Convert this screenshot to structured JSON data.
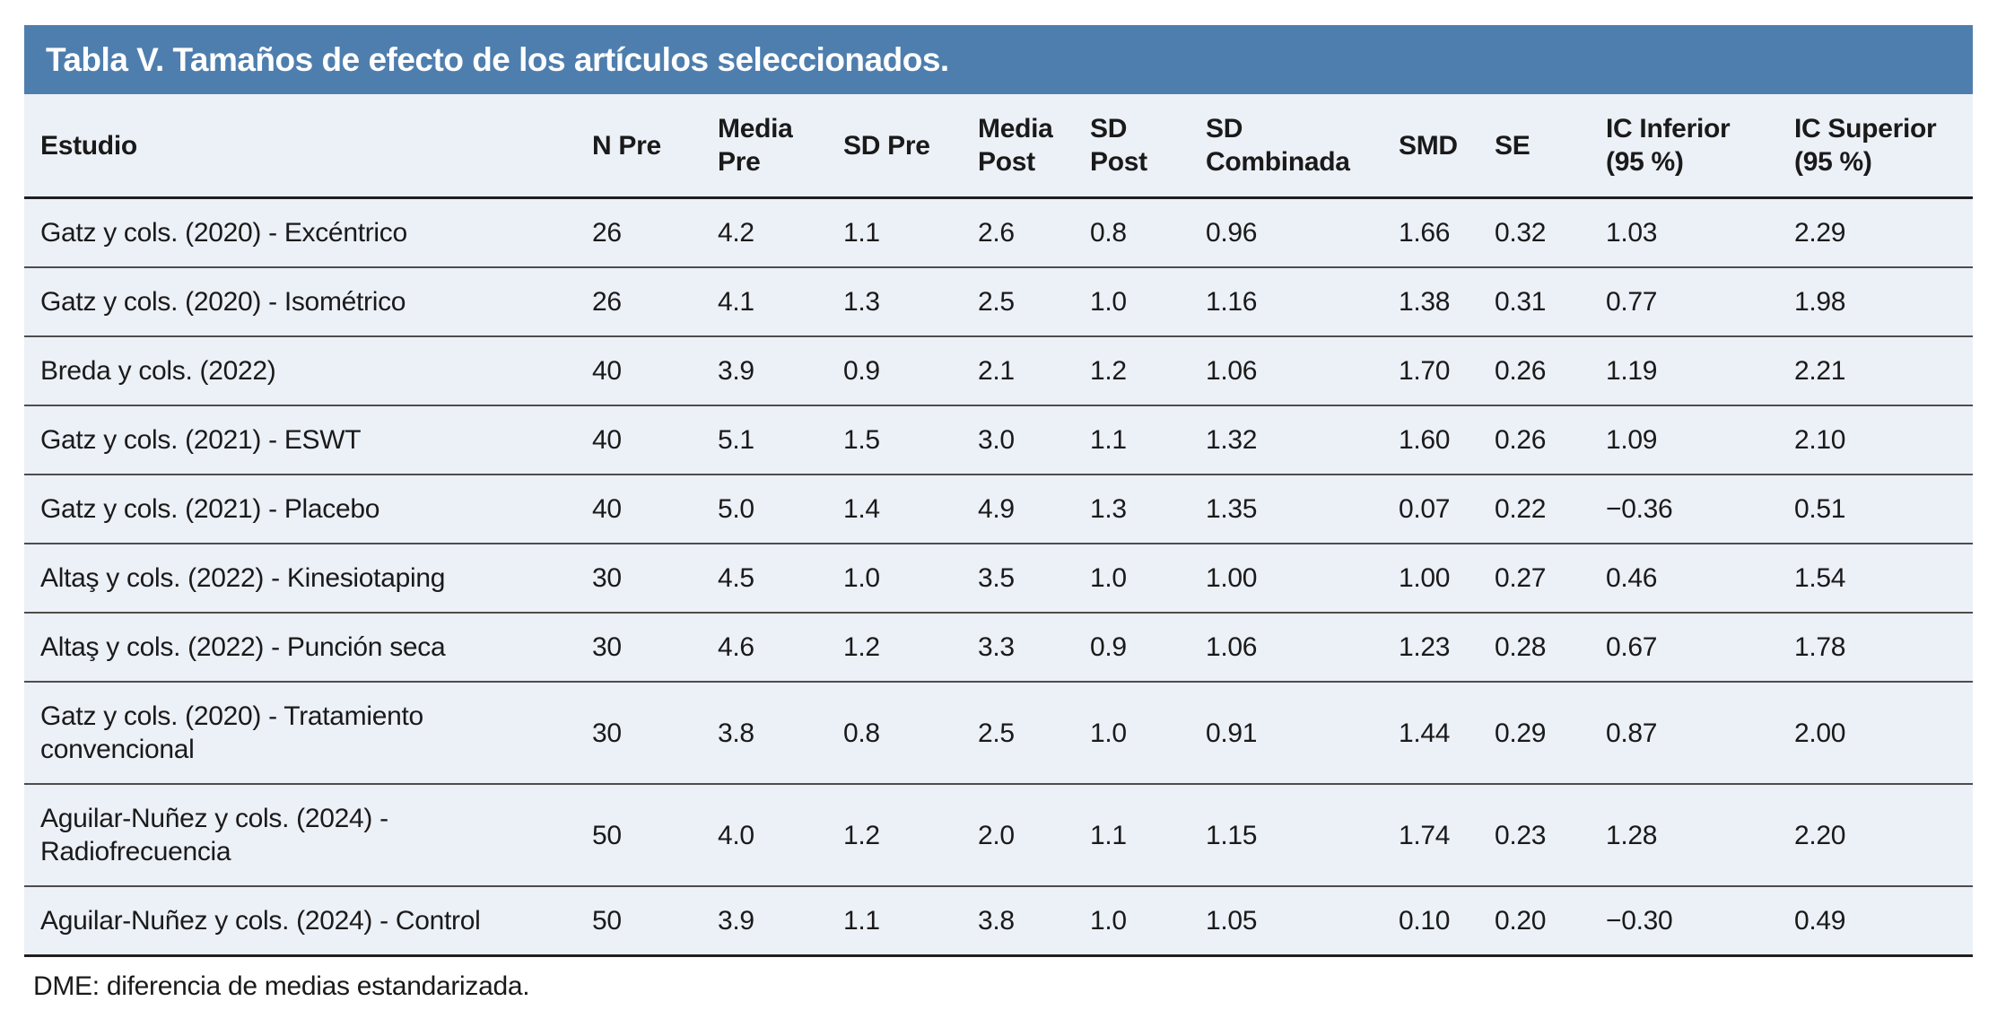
{
  "title": "Tabla V. Tamaños de efecto de los artículos seleccionados.",
  "table": {
    "columns": [
      {
        "key": "estudio",
        "label": "Estudio"
      },
      {
        "key": "n_pre",
        "label": "N Pre"
      },
      {
        "key": "media_pre",
        "label": "Media Pre"
      },
      {
        "key": "sd_pre",
        "label": "SD Pre"
      },
      {
        "key": "media_post",
        "label": "Media Post"
      },
      {
        "key": "sd_post",
        "label": "SD Post"
      },
      {
        "key": "sd_combinada",
        "label": "SD Combinada"
      },
      {
        "key": "smd",
        "label": "SMD"
      },
      {
        "key": "se",
        "label": "SE"
      },
      {
        "key": "ic_inferior",
        "label": "IC Inferior (95 %)"
      },
      {
        "key": "ic_superior",
        "label": "IC Superior (95 %)"
      }
    ],
    "rows": [
      {
        "estudio": "Gatz y cols. (2020) - Excéntrico",
        "n_pre": "26",
        "media_pre": "4.2",
        "sd_pre": "1.1",
        "media_post": "2.6",
        "sd_post": "0.8",
        "sd_combinada": "0.96",
        "smd": "1.66",
        "se": "0.32",
        "ic_inferior": "1.03",
        "ic_superior": "2.29"
      },
      {
        "estudio": "Gatz y cols. (2020) - Isométrico",
        "n_pre": "26",
        "media_pre": "4.1",
        "sd_pre": "1.3",
        "media_post": "2.5",
        "sd_post": "1.0",
        "sd_combinada": "1.16",
        "smd": "1.38",
        "se": "0.31",
        "ic_inferior": "0.77",
        "ic_superior": "1.98"
      },
      {
        "estudio": "Breda y cols. (2022)",
        "n_pre": "40",
        "media_pre": "3.9",
        "sd_pre": "0.9",
        "media_post": "2.1",
        "sd_post": "1.2",
        "sd_combinada": "1.06",
        "smd": "1.70",
        "se": "0.26",
        "ic_inferior": "1.19",
        "ic_superior": "2.21"
      },
      {
        "estudio": "Gatz y cols. (2021) - ESWT",
        "n_pre": "40",
        "media_pre": "5.1",
        "sd_pre": "1.5",
        "media_post": "3.0",
        "sd_post": "1.1",
        "sd_combinada": "1.32",
        "smd": "1.60",
        "se": "0.26",
        "ic_inferior": "1.09",
        "ic_superior": "2.10"
      },
      {
        "estudio": "Gatz y cols. (2021) - Placebo",
        "n_pre": "40",
        "media_pre": "5.0",
        "sd_pre": "1.4",
        "media_post": "4.9",
        "sd_post": "1.3",
        "sd_combinada": "1.35",
        "smd": "0.07",
        "se": "0.22",
        "ic_inferior": "−0.36",
        "ic_superior": "0.51"
      },
      {
        "estudio": "Altaş y cols. (2022) - Kinesiotaping",
        "n_pre": "30",
        "media_pre": "4.5",
        "sd_pre": "1.0",
        "media_post": "3.5",
        "sd_post": "1.0",
        "sd_combinada": "1.00",
        "smd": "1.00",
        "se": "0.27",
        "ic_inferior": "0.46",
        "ic_superior": "1.54"
      },
      {
        "estudio": "Altaş y cols. (2022) - Punción seca",
        "n_pre": "30",
        "media_pre": "4.6",
        "sd_pre": "1.2",
        "media_post": "3.3",
        "sd_post": "0.9",
        "sd_combinada": "1.06",
        "smd": "1.23",
        "se": "0.28",
        "ic_inferior": "0.67",
        "ic_superior": "1.78"
      },
      {
        "estudio": "Gatz y cols. (2020) - Tratamiento convencional",
        "n_pre": "30",
        "media_pre": "3.8",
        "sd_pre": "0.8",
        "media_post": "2.5",
        "sd_post": "1.0",
        "sd_combinada": "0.91",
        "smd": "1.44",
        "se": "0.29",
        "ic_inferior": "0.87",
        "ic_superior": "2.00"
      },
      {
        "estudio": "Aguilar-Nuñez y cols. (2024) - Radiofrecuencia",
        "n_pre": "50",
        "media_pre": "4.0",
        "sd_pre": "1.2",
        "media_post": "2.0",
        "sd_post": "1.1",
        "sd_combinada": "1.15",
        "smd": "1.74",
        "se": "0.23",
        "ic_inferior": "1.28",
        "ic_superior": "2.20"
      },
      {
        "estudio": "Aguilar-Nuñez y cols. (2024) - Control",
        "n_pre": "50",
        "media_pre": "3.9",
        "sd_pre": "1.1",
        "media_post": "3.8",
        "sd_post": "1.0",
        "sd_combinada": "1.05",
        "smd": "0.10",
        "se": "0.20",
        "ic_inferior": "−0.30",
        "ic_superior": "0.49"
      }
    ]
  },
  "footnote": "DME: diferencia de medias estandarizada.",
  "colors": {
    "header_bar": "#4E7EAD",
    "row_bg": "#ECF0F7",
    "border": "#4D4D4D",
    "header_border": "#1F1F1F",
    "text": "#1A1A1A",
    "title_text": "#FFFFFF"
  }
}
